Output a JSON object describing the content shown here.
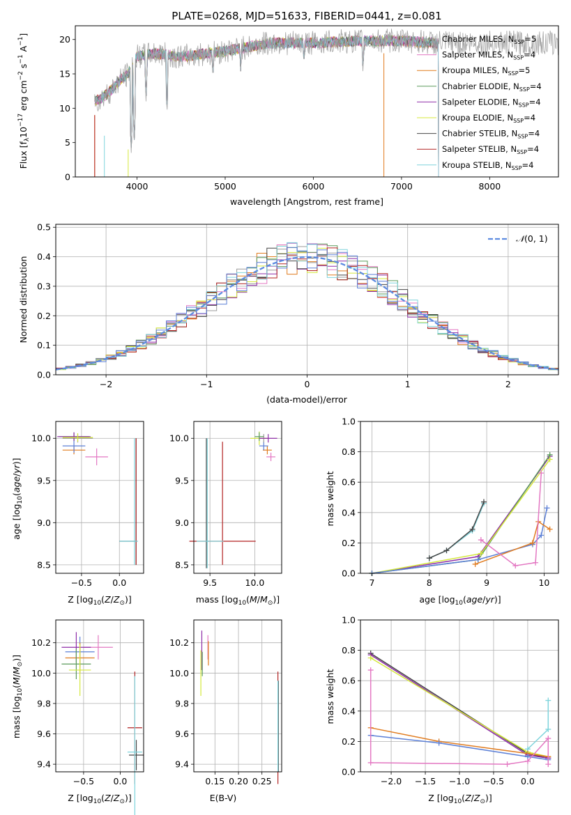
{
  "title": "PLATE=0268, MJD=51633, FIBERID=0441, z=0.081",
  "colors": {
    "Chabrier MILES": "#9a9a9a",
    "Salpeter MILES": "#e377c2",
    "Kroupa MILES": "#e07b1e",
    "Chabrier ELODIE": "#5a9a5a",
    "Salpeter ELODIE": "#8e2ca8",
    "Kroupa ELODIE": "#d4e83a",
    "Chabrier STELIB": "#444444",
    "Salpeter STELIB": "#b22222",
    "Kroupa STELIB": "#7fd4dc",
    "blue": "#5b7fd6"
  },
  "chart_data": [
    {
      "id": "spectrum",
      "type": "line",
      "xlabel": "wavelength [Angstrom, rest frame]",
      "ylabel_text": "Flux [f",
      "xticks": [
        4000,
        5000,
        6000,
        7000,
        8000
      ],
      "yticks": [
        0,
        5,
        10,
        15,
        20
      ],
      "xlim": [
        3300,
        8780
      ],
      "ylim": [
        0,
        22
      ],
      "grid": false,
      "legend_position": "upper right",
      "legend": [
        {
          "name": "Chabrier MILES",
          "nssp": "5"
        },
        {
          "name": "Salpeter MILES",
          "nssp": "4"
        },
        {
          "name": "Kroupa MILES",
          "nssp": "5"
        },
        {
          "name": "Chabrier ELODIE",
          "nssp": "4"
        },
        {
          "name": "Salpeter ELODIE",
          "nssp": "4"
        },
        {
          "name": "Kroupa ELODIE",
          "nssp": "4"
        },
        {
          "name": "Chabrier STELIB",
          "nssp": "4"
        },
        {
          "name": "Salpeter STELIB",
          "nssp": "4"
        },
        {
          "name": "Kroupa STELIB",
          "nssp": "4"
        }
      ],
      "continuum": {
        "x": [
          3520,
          3600,
          3700,
          3800,
          3900,
          4000,
          4200,
          4500,
          5000,
          5500,
          6000,
          6500,
          7000,
          7400
        ],
        "y": [
          11,
          11.5,
          12.5,
          14,
          15,
          17.5,
          18,
          17.5,
          18.3,
          19.5,
          19.5,
          19.8,
          19.8,
          19.5
        ]
      },
      "absorption_features": [
        {
          "x": 3934,
          "y": 3.5
        },
        {
          "x": 3969,
          "y": 5
        },
        {
          "x": 4102,
          "y": 11
        },
        {
          "x": 4340,
          "y": 9
        },
        {
          "x": 4861,
          "y": 14
        },
        {
          "x": 5175,
          "y": 15
        },
        {
          "x": 5893,
          "y": 16
        },
        {
          "x": 6563,
          "y": 15
        }
      ]
    },
    {
      "id": "residual_histogram",
      "type": "histogram",
      "xlabel": "(data-model)/error",
      "ylabel": "Normed distribution",
      "xticks": [
        -2,
        -1,
        0,
        1,
        2
      ],
      "yticks": [
        0.0,
        0.1,
        0.2,
        0.3,
        0.4,
        0.5
      ],
      "xlim": [
        -2.5,
        2.5
      ],
      "ylim": [
        0,
        0.51
      ],
      "grid": true,
      "bin_width": 0.1,
      "bin_start": -2.5,
      "gaussian_label": "N(0,1)",
      "gaussian": {
        "mean": 0,
        "sigma": 1
      }
    },
    {
      "id": "age_vs_Z",
      "type": "errorbar",
      "xlabel": "Z [log10(Z/Z⊙)]",
      "ylabel": "age  [log10(age/yr)]",
      "xlim": [
        -0.84,
        0.32
      ],
      "ylim": [
        8.4,
        10.2
      ],
      "xticks": [
        -0.5,
        0.0
      ],
      "yticks": [
        8.5,
        9.0,
        9.5,
        10.0
      ],
      "grid": true,
      "points": [
        {
          "series": "Salpeter MILES",
          "x": -0.3,
          "y": 9.78,
          "xerr": 0.15,
          "yerr": 0.1
        },
        {
          "series": "Chabrier MILES",
          "x": -0.55,
          "y": 10.0,
          "xerr": 0.2,
          "yerr": 0.05
        },
        {
          "series": "Kroupa MILES",
          "x": -0.6,
          "y": 9.86,
          "xerr": 0.15,
          "yerr": 0.05
        },
        {
          "series": "blue",
          "x": -0.6,
          "y": 9.91,
          "xerr": 0.15,
          "yerr": 0.08
        },
        {
          "series": "Chabrier ELODIE",
          "x": -0.6,
          "y": 10.02,
          "xerr": 0.2,
          "yerr": 0.05
        },
        {
          "series": "Salpeter ELODIE",
          "x": -0.6,
          "y": 10.02,
          "xerr": 0.22,
          "yerr": 0.05
        },
        {
          "series": "Kroupa ELODIE",
          "x": -0.55,
          "y": 10.01,
          "xerr": 0.2,
          "yerr": 0.05
        },
        {
          "series": "Chabrier STELIB",
          "x": 0.22,
          "y": 9.25,
          "xerr": 0.0,
          "yerr": 0.75
        },
        {
          "series": "Salpeter STELIB",
          "x": 0.22,
          "y": 9.25,
          "xerr": 0.0,
          "yerr": 0.75
        },
        {
          "series": "Kroupa STELIB",
          "x": 0.2,
          "y": 9.25,
          "xerr": 0.0,
          "yerr": 0.75
        },
        {
          "series": "Chabrier STELIB",
          "x": 0.12,
          "y": 8.78,
          "xerr": 0.12,
          "yerr": 0.0
        },
        {
          "series": "Kroupa STELIB",
          "x": 0.12,
          "y": 8.78,
          "xerr": 0.12,
          "yerr": 0.0
        }
      ]
    },
    {
      "id": "age_vs_mass",
      "type": "errorbar",
      "xlabel": "mass [log10(M/M⊙)]",
      "ylabel": "",
      "xlim": [
        9.32,
        10.3
      ],
      "ylim": [
        8.4,
        10.2
      ],
      "xticks": [
        9.5,
        10.0
      ],
      "yticks": [
        8.5,
        9.0,
        9.5,
        10.0
      ],
      "grid": true,
      "points": [
        {
          "series": "Salpeter MILES",
          "x": 10.18,
          "y": 9.78,
          "xerr": 0.05,
          "yerr": 0.05
        },
        {
          "series": "Kroupa MILES",
          "x": 10.14,
          "y": 9.86,
          "xerr": 0.05,
          "yerr": 0.05
        },
        {
          "series": "blue",
          "x": 10.1,
          "y": 9.91,
          "xerr": 0.05,
          "yerr": 0.05
        },
        {
          "series": "Chabrier MILES",
          "x": 10.1,
          "y": 10.0,
          "xerr": 0.05,
          "yerr": 0.05
        },
        {
          "series": "Kroupa ELODIE",
          "x": 10.05,
          "y": 10.0,
          "xerr": 0.1,
          "yerr": 0.08
        },
        {
          "series": "Chabrier ELODIE",
          "x": 10.05,
          "y": 10.02,
          "xerr": 0.05,
          "yerr": 0.05
        },
        {
          "series": "Salpeter ELODIE",
          "x": 10.15,
          "y": 10.0,
          "xerr": 0.1,
          "yerr": 0.05
        },
        {
          "series": "Salpeter STELIB",
          "x": 9.64,
          "y": 8.78,
          "xerr": 0.37,
          "yerr": 0.0
        },
        {
          "series": "Salpeter STELIB",
          "x": 9.64,
          "y": 9.23,
          "xerr": 0.0,
          "yerr": 0.73
        },
        {
          "series": "Chabrier STELIB",
          "x": 9.46,
          "y": 9.23,
          "xerr": 0.0,
          "yerr": 0.77
        },
        {
          "series": "Kroupa STELIB",
          "x": 9.47,
          "y": 9.23,
          "xerr": 0.0,
          "yerr": 0.77
        },
        {
          "series": "Kroupa STELIB",
          "x": 9.5,
          "y": 8.78,
          "xerr": 0.15,
          "yerr": 0.0
        }
      ]
    },
    {
      "id": "mass_weight_vs_age",
      "type": "line",
      "xlabel": "age  [log10(age/yr)]",
      "ylabel": "mass weight",
      "xlim": [
        6.8,
        10.25
      ],
      "ylim": [
        0,
        1.0
      ],
      "xticks": [
        7,
        8,
        9,
        10
      ],
      "yticks": [
        0.0,
        0.2,
        0.4,
        0.6,
        0.8,
        1.0
      ],
      "grid": true,
      "series": [
        {
          "name": "Kroupa STELIB",
          "x": [
            8.0,
            8.3,
            8.75,
            8.95
          ],
          "y": [
            0.1,
            0.15,
            0.28,
            0.46
          ]
        },
        {
          "name": "Chabrier STELIB",
          "x": [
            8.0,
            8.3,
            8.75,
            8.95
          ],
          "y": [
            0.1,
            0.15,
            0.29,
            0.47
          ]
        },
        {
          "name": "Salpeter ELODIE",
          "x": [
            7.0,
            8.85,
            10.1
          ],
          "y": [
            0.0,
            0.11,
            0.77
          ]
        },
        {
          "name": "Chabrier ELODIE",
          "x": [
            7.0,
            8.85,
            10.1
          ],
          "y": [
            0.0,
            0.09,
            0.78
          ]
        },
        {
          "name": "Kroupa ELODIE",
          "x": [
            7.0,
            8.9,
            10.1
          ],
          "y": [
            0.0,
            0.13,
            0.75
          ]
        },
        {
          "name": "blue",
          "x": [
            7.0,
            8.85,
            9.8,
            9.95,
            10.05
          ],
          "y": [
            0.0,
            0.09,
            0.19,
            0.25,
            0.43
          ]
        },
        {
          "name": "Kroupa MILES",
          "x": [
            8.8,
            9.8,
            9.9,
            10.1
          ],
          "y": [
            0.06,
            0.2,
            0.34,
            0.29
          ]
        },
        {
          "name": "Salpeter MILES",
          "x": [
            8.9,
            9.5,
            9.85,
            9.95
          ],
          "y": [
            0.22,
            0.05,
            0.07,
            0.66
          ]
        }
      ]
    },
    {
      "id": "mass_vs_Z",
      "type": "errorbar",
      "xlabel": "Z [log10(Z/Z⊙)]",
      "ylabel": "mass [log10(M/M⊙)]",
      "xlim": [
        -0.88,
        0.32
      ],
      "ylim": [
        9.35,
        10.35
      ],
      "xticks": [
        -0.5,
        0.0
      ],
      "yticks": [
        9.4,
        9.6,
        9.8,
        10.0,
        10.2
      ],
      "grid": true,
      "points": [
        {
          "series": "Salpeter MILES",
          "x": -0.3,
          "y": 10.17,
          "xerr": 0.2,
          "yerr": 0.08
        },
        {
          "series": "Salpeter ELODIE",
          "x": -0.6,
          "y": 10.17,
          "xerr": 0.2,
          "yerr": 0.1
        },
        {
          "series": "blue",
          "x": -0.55,
          "y": 10.14,
          "xerr": 0.2,
          "yerr": 0.1
        },
        {
          "series": "Kroupa MILES",
          "x": -0.55,
          "y": 10.1,
          "xerr": 0.2,
          "yerr": 0.1
        },
        {
          "series": "Chabrier ELODIE",
          "x": -0.6,
          "y": 10.06,
          "xerr": 0.2,
          "yerr": 0.1
        },
        {
          "series": "Kroupa ELODIE",
          "x": -0.55,
          "y": 10.02,
          "xerr": 0.15,
          "yerr": 0.17
        },
        {
          "series": "Salpeter STELIB",
          "x": 0.2,
          "y": 9.64,
          "xerr": 0.1,
          "yerr": 0.37
        },
        {
          "series": "Chabrier STELIB",
          "x": 0.22,
          "y": 9.46,
          "xerr": 0.1,
          "yerr": 0.1
        },
        {
          "series": "Kroupa STELIB",
          "x": 0.2,
          "y": 9.48,
          "xerr": 0.1,
          "yerr": 0.5
        }
      ]
    },
    {
      "id": "mass_vs_ebv",
      "type": "errorbar",
      "xlabel": "E(B-V)",
      "ylabel": "",
      "xlim": [
        0.105,
        0.292
      ],
      "ylim": [
        9.35,
        10.35
      ],
      "xticks": [
        0.15,
        0.2,
        0.25
      ],
      "yticks": [
        9.4,
        9.6,
        9.8,
        10.0,
        10.2
      ],
      "grid": true,
      "points": [
        {
          "series": "Salpeter ELODIE",
          "x": 0.122,
          "y": 10.15,
          "xerr": 0,
          "yerr": 0.13
        },
        {
          "series": "Kroupa ELODIE",
          "x": 0.12,
          "y": 10.0,
          "xerr": 0,
          "yerr": 0.15
        },
        {
          "series": "Chabrier ELODIE",
          "x": 0.123,
          "y": 10.06,
          "xerr": 0,
          "yerr": 0.08
        },
        {
          "series": "Salpeter MILES",
          "x": 0.135,
          "y": 10.17,
          "xerr": 0,
          "yerr": 0.08
        },
        {
          "series": "Kroupa MILES",
          "x": 0.136,
          "y": 10.13,
          "xerr": 0,
          "yerr": 0.08
        },
        {
          "series": "Salpeter STELIB",
          "x": 0.284,
          "y": 9.64,
          "xerr": 0,
          "yerr": 0.37
        },
        {
          "series": "Chabrier STELIB",
          "x": 0.285,
          "y": 9.65,
          "xerr": 0,
          "yerr": 0.3
        },
        {
          "series": "Kroupa STELIB",
          "x": 0.284,
          "y": 9.65,
          "xerr": 0,
          "yerr": 0.3
        }
      ]
    },
    {
      "id": "mass_weight_vs_Z",
      "type": "line",
      "xlabel": "Z [log10(Z/Z⊙)]",
      "ylabel": "mass weight",
      "xlim": [
        -2.45,
        0.45
      ],
      "ylim": [
        0,
        1.0
      ],
      "xticks": [
        -2.0,
        -1.5,
        -1.0,
        -0.5,
        0.0
      ],
      "yticks": [
        0.0,
        0.2,
        0.4,
        0.6,
        0.8,
        1.0
      ],
      "grid": true,
      "series": [
        {
          "name": "Chabrier STELIB",
          "x": [
            -2.3,
            0.0,
            0.3
          ],
          "y": [
            0.78,
            0.12,
            0.09
          ]
        },
        {
          "name": "Salpeter ELODIE",
          "x": [
            -2.3,
            0.0,
            0.3
          ],
          "y": [
            0.77,
            0.11,
            0.09
          ]
        },
        {
          "name": "Kroupa ELODIE",
          "x": [
            -2.3,
            0.0,
            0.3
          ],
          "y": [
            0.75,
            0.13,
            0.1
          ]
        },
        {
          "name": "Kroupa STELIB",
          "x": [
            0.0,
            0.0,
            0.3,
            0.3
          ],
          "y": [
            0.1,
            0.15,
            0.28,
            0.47
          ]
        },
        {
          "name": "Kroupa MILES",
          "x": [
            -2.3,
            -1.3,
            0.0,
            0.3
          ],
          "y": [
            0.29,
            0.2,
            0.12,
            0.1
          ]
        },
        {
          "name": "blue",
          "x": [
            -2.3,
            -1.3,
            0.0,
            0.3
          ],
          "y": [
            0.24,
            0.19,
            0.1,
            0.08
          ]
        },
        {
          "name": "Salpeter MILES",
          "x": [
            -2.3,
            -2.3,
            -0.3,
            0.0,
            0.3,
            0.3
          ],
          "y": [
            0.67,
            0.06,
            0.05,
            0.07,
            0.22,
            0.05
          ]
        }
      ]
    }
  ]
}
